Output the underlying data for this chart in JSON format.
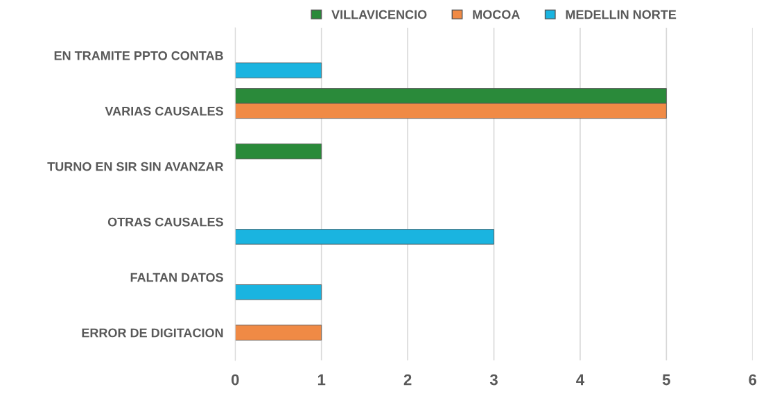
{
  "chart_data": {
    "type": "bar",
    "orientation": "horizontal",
    "categories": [
      "EN TRAMITE PPTO CONTAB",
      "VARIAS CAUSALES",
      "TURNO EN SIR SIN AVANZAR",
      "OTRAS CAUSALES",
      "FALTAN DATOS",
      "ERROR DE DIGITACION"
    ],
    "series": [
      {
        "name": "VILLAVICENCIO",
        "color": "#2a8a3a",
        "values": [
          null,
          5,
          1,
          null,
          null,
          null
        ]
      },
      {
        "name": "MOCOA",
        "color": "#f08a45",
        "values": [
          null,
          5,
          null,
          null,
          null,
          1
        ]
      },
      {
        "name": "MEDELLIN NORTE",
        "color": "#1ab4e0",
        "values": [
          1,
          null,
          null,
          3,
          1,
          null
        ]
      }
    ],
    "xlim": [
      0,
      6
    ],
    "xticks": [
      0,
      1,
      2,
      3,
      4,
      5,
      6
    ],
    "grid": "x",
    "legend": "top"
  }
}
